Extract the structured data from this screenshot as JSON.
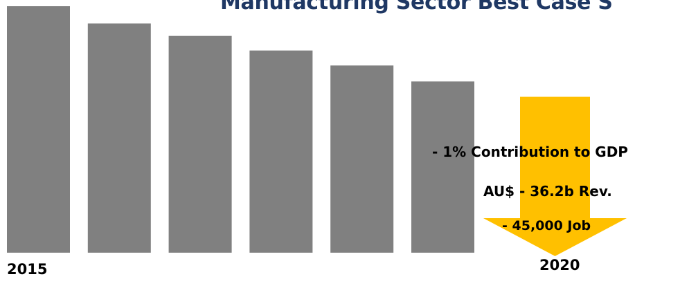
{
  "chart_data": {
    "type": "bar",
    "title": "Manufacturing Sector Best Case S",
    "categories": [
      "",
      "",
      "",
      "",
      "",
      ""
    ],
    "values": [
      100,
      93,
      88,
      82,
      76,
      69.5
    ],
    "ylim": [
      0,
      100
    ],
    "grid": false,
    "x_start_label": "2015",
    "x_end_label": "2020",
    "annotations": [
      "- 1% Contribution to GDP",
      "AU$ - 36.2b Rev.",
      "- 45,000  Job"
    ]
  },
  "colors": {
    "bar": "#808080",
    "arrow": "#FFC000",
    "title": "#1F3864"
  }
}
